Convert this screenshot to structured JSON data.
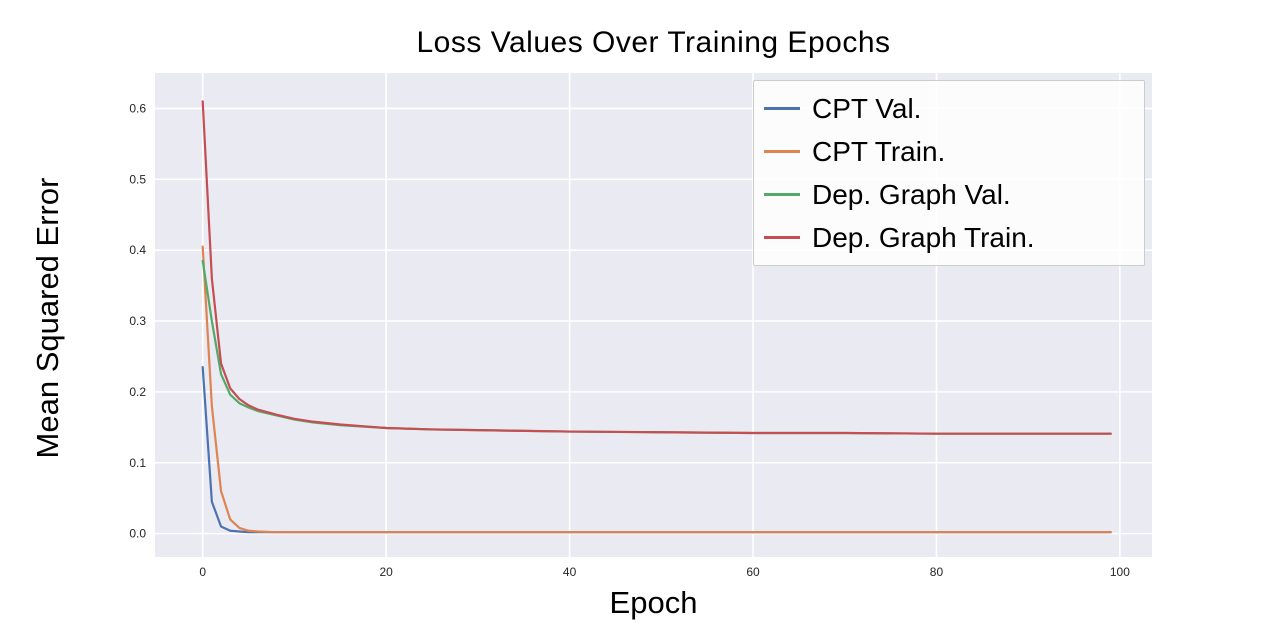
{
  "chart_data": {
    "type": "line",
    "title": "Loss Values Over Training Epochs",
    "xlabel": "Epoch",
    "ylabel": "Mean Squared Error",
    "xlim": [
      -5.2,
      103.5
    ],
    "ylim": [
      -0.033,
      0.65
    ],
    "x_ticks": [
      0,
      20,
      40,
      60,
      80,
      100
    ],
    "y_ticks": [
      0.0,
      0.1,
      0.2,
      0.3,
      0.4,
      0.5,
      0.6
    ],
    "grid": true,
    "grid_color": "#ffffff",
    "plot_background": "#eaeaf2",
    "legend_position": "upper right",
    "series": [
      {
        "name": "CPT Val.",
        "color": "#4c72b0",
        "x": [
          0,
          1,
          2,
          3,
          4,
          5,
          6,
          8,
          10,
          15,
          20,
          30,
          40,
          50,
          60,
          70,
          80,
          90,
          99
        ],
        "y": [
          0.235,
          0.045,
          0.01,
          0.004,
          0.003,
          0.002,
          0.002,
          0.002,
          0.002,
          0.002,
          0.002,
          0.002,
          0.002,
          0.002,
          0.002,
          0.002,
          0.002,
          0.002,
          0.002
        ]
      },
      {
        "name": "CPT Train.",
        "color": "#dd8452",
        "x": [
          0,
          1,
          2,
          3,
          4,
          5,
          6,
          8,
          10,
          15,
          20,
          30,
          40,
          50,
          60,
          70,
          80,
          90,
          99
        ],
        "y": [
          0.405,
          0.18,
          0.06,
          0.02,
          0.008,
          0.004,
          0.003,
          0.002,
          0.002,
          0.002,
          0.002,
          0.002,
          0.002,
          0.002,
          0.002,
          0.002,
          0.002,
          0.002,
          0.002
        ]
      },
      {
        "name": "Dep. Graph Val.",
        "color": "#55a868",
        "x": [
          0,
          1,
          2,
          3,
          4,
          5,
          6,
          8,
          10,
          12,
          15,
          20,
          25,
          30,
          40,
          50,
          60,
          70,
          80,
          90,
          99
        ],
        "y": [
          0.385,
          0.3,
          0.225,
          0.196,
          0.184,
          0.178,
          0.173,
          0.167,
          0.161,
          0.157,
          0.153,
          0.149,
          0.147,
          0.146,
          0.144,
          0.143,
          0.142,
          0.142,
          0.141,
          0.141,
          0.141
        ]
      },
      {
        "name": "Dep. Graph Train.",
        "color": "#c44e52",
        "x": [
          0,
          1,
          2,
          3,
          4,
          5,
          6,
          8,
          10,
          12,
          15,
          20,
          25,
          30,
          40,
          50,
          60,
          70,
          80,
          90,
          99
        ],
        "y": [
          0.61,
          0.36,
          0.24,
          0.205,
          0.19,
          0.181,
          0.175,
          0.168,
          0.162,
          0.158,
          0.154,
          0.149,
          0.147,
          0.146,
          0.144,
          0.143,
          0.142,
          0.142,
          0.141,
          0.141,
          0.141
        ]
      }
    ]
  }
}
